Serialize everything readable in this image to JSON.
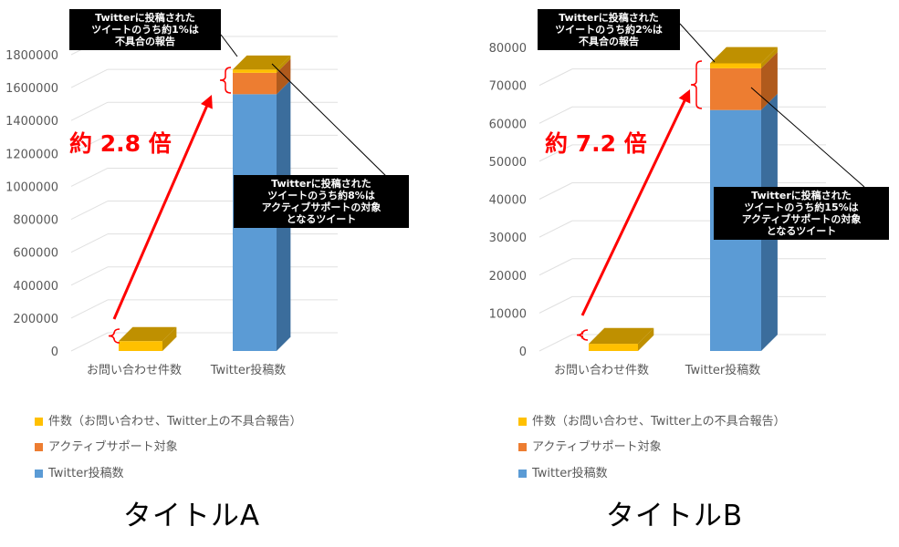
{
  "legend": [
    {
      "label": "件数（お問い合わせ、Twitter上の不具合報告）",
      "color": "#ffc000"
    },
    {
      "label": "アクティブサポート対象",
      "color": "#ed7d31"
    },
    {
      "label": "Twitter投稿数",
      "color": "#5b9bd5"
    }
  ],
  "charts": [
    {
      "title": "タイトルA",
      "ratio_label": "約 2.8 倍",
      "callout_top": [
        "Twitterに投稿された",
        "ツイートのうち約1%は",
        "不具合の報告"
      ],
      "callout_mid": [
        "Twitterに投稿された",
        "ツイートのうち約8%は",
        "アクティブサポートの対象",
        "となるツイート"
      ]
    },
    {
      "title": "タイトルB",
      "ratio_label": "約 7.2 倍",
      "callout_top": [
        "Twitterに投稿された",
        "ツイートのうち約2%は",
        "不具合の報告"
      ],
      "callout_mid": [
        "Twitterに投稿された",
        "ツイートのうち約15%は",
        "アクティブサポートの対象",
        "となるツイート"
      ]
    }
  ],
  "chart_data": [
    {
      "type": "bar",
      "stacked": true,
      "three_d": true,
      "categories": [
        "お問い合わせ件数",
        "Twitter投稿数"
      ],
      "ylim": [
        0,
        1800000
      ],
      "yticks": [
        0,
        200000,
        400000,
        600000,
        800000,
        1000000,
        1200000,
        1400000,
        1600000,
        1800000
      ],
      "grid": true,
      "legend_position": "bottom-left",
      "series": [
        {
          "name": "Twitter投稿数",
          "color": "#5b9bd5",
          "top": "#3b6d9c",
          "values": [
            0,
            1560000
          ]
        },
        {
          "name": "アクティブサポート対象",
          "color": "#ed7d31",
          "top": "#b05a1c",
          "values": [
            0,
            130000
          ]
        },
        {
          "name": "件数（お問い合わせ、Twitter上の不具合報告）",
          "color": "#ffc000",
          "top": "#bf9000",
          "values": [
            60000,
            20000
          ]
        }
      ]
    },
    {
      "type": "bar",
      "stacked": true,
      "three_d": true,
      "categories": [
        "お問い合わせ件数",
        "Twitter投稿数"
      ],
      "ylim": [
        0,
        80000
      ],
      "yticks": [
        0,
        10000,
        20000,
        30000,
        40000,
        50000,
        60000,
        70000,
        80000
      ],
      "grid": true,
      "legend_position": "bottom-left",
      "series": [
        {
          "name": "Twitter投稿数",
          "color": "#5b9bd5",
          "top": "#3b6d9c",
          "values": [
            0,
            63500
          ]
        },
        {
          "name": "アクティブサポート対象",
          "color": "#ed7d31",
          "top": "#b05a1c",
          "values": [
            0,
            11000
          ]
        },
        {
          "name": "件数（お問い合わせ、Twitter上の不具合報告）",
          "color": "#ffc000",
          "top": "#bf9000",
          "values": [
            1900,
            1300
          ]
        }
      ]
    }
  ]
}
